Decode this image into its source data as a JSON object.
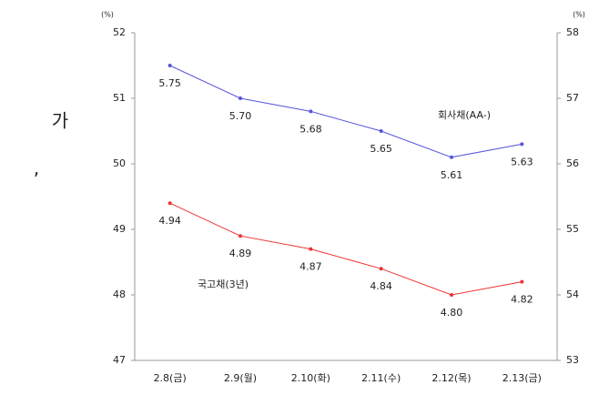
{
  "chart_data": {
    "type": "line",
    "categories": [
      "2.8(금)",
      "2.9(월)",
      "2.10(화)",
      "2.11(수)",
      "2.12(목)",
      "2.13(금)"
    ],
    "y_unit": "(%)",
    "y2_unit": "(%)",
    "ylim": [
      47,
      52
    ],
    "yticks": [
      47,
      48,
      49,
      50,
      51,
      52
    ],
    "y2lim": [
      53,
      58
    ],
    "y2ticks": [
      53,
      54,
      55,
      56,
      57,
      58
    ],
    "grid": false,
    "series": [
      {
        "name": "회사채(AA-)",
        "color": "#5555dd",
        "axis": "y2",
        "values": [
          57.5,
          57.0,
          56.8,
          56.5,
          56.1,
          56.3
        ],
        "value_labels": [
          "5.75",
          "5.70",
          "5.68",
          "5.65",
          "5.61",
          "5.63"
        ]
      },
      {
        "name": "국고채(3년)",
        "color": "#ee3333",
        "values": [
          49.4,
          48.9,
          48.7,
          48.4,
          48.0,
          48.2
        ],
        "value_labels": [
          "4.94",
          "4.89",
          "4.87",
          "4.84",
          "4.80",
          "4.82"
        ]
      }
    ],
    "side_texts": [
      "가",
      ","
    ]
  }
}
